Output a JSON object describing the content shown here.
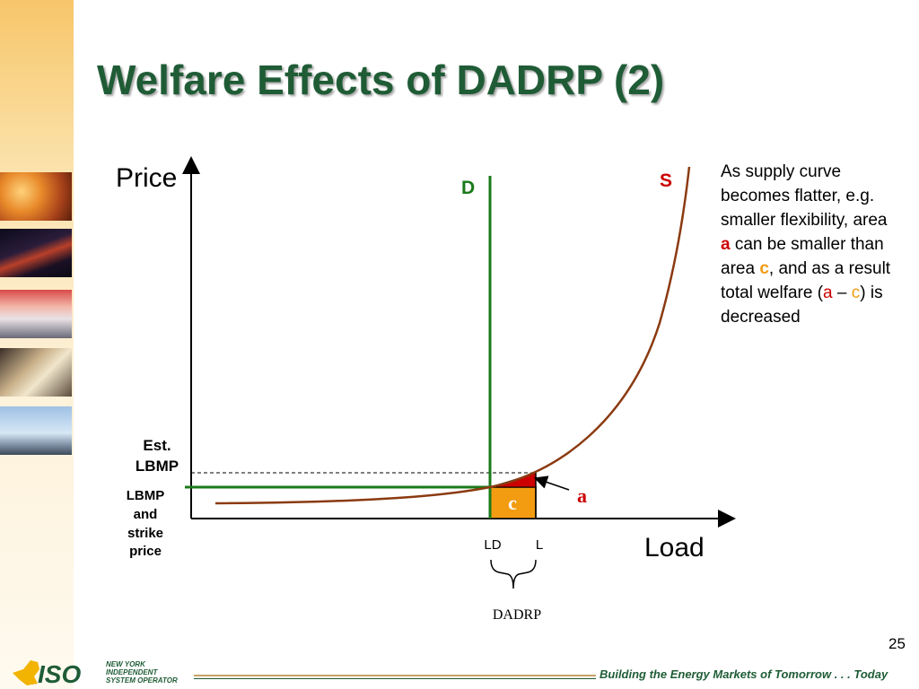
{
  "slide": {
    "title": "Welfare Effects of DADRP (2)",
    "number": "25"
  },
  "diagram": {
    "y_axis_label": "Price",
    "x_axis_label": "Load",
    "demand_label": "D",
    "supply_label": "S",
    "est_lbmp_label_line1": "Est.",
    "est_lbmp_label_line2": "LBMP",
    "lbmp_label_line1": "LBMP",
    "lbmp_label_line2": "and",
    "lbmp_label_line3": "strike",
    "lbmp_label_line4": "price",
    "area_a_label": "a",
    "area_c_label": "c",
    "ld_label": "LD",
    "l_label": "L",
    "bracket_label": "DADRP",
    "colors": {
      "demand": "#1a7a1a",
      "supply": "#8b3a10",
      "area_a": "#cc0000",
      "area_c": "#f39c12",
      "label_red": "#cc0000",
      "label_green": "#1a7a1a"
    }
  },
  "description": {
    "part1": "As supply curve becomes flatter, e.g. smaller flexibility, area ",
    "a1": "a",
    "part2": " can be smaller than area ",
    "c1": "c",
    "part3": ", and as a result total welfare (",
    "a2": "a",
    "dash": " – ",
    "c2": "c",
    "part4": ") is decreased"
  },
  "footer": {
    "logo_text_line1": "NEW YORK",
    "logo_text_line2": "INDEPENDENT",
    "logo_text_line3": "SYSTEM OPERATOR",
    "logo_mark": "ISO",
    "tagline": "Building the Energy Markets of Tomorrow . . . Today"
  }
}
